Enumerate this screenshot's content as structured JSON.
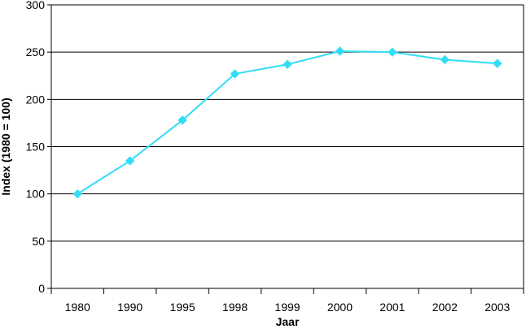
{
  "chart_data": {
    "type": "line",
    "categories": [
      "1980",
      "1990",
      "1995",
      "1998",
      "1999",
      "2000",
      "2001",
      "2002",
      "2003"
    ],
    "series": [
      {
        "values": [
          100,
          135,
          178,
          227,
          237,
          251,
          250,
          242,
          238
        ]
      }
    ],
    "xlabel": "Jaar",
    "ylabel": "Index (1980 = 100)",
    "ylim": [
      0,
      300
    ],
    "yticks": [
      0,
      50,
      100,
      150,
      200,
      250,
      300
    ],
    "grid": "horizontal",
    "line_color": "#33dcf5",
    "marker": "diamond"
  }
}
